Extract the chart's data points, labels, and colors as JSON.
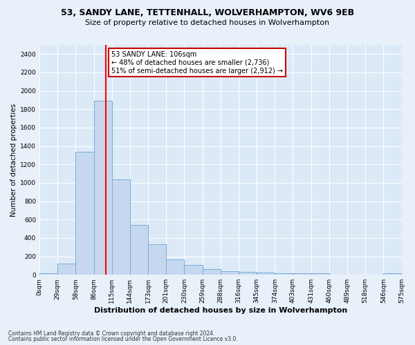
{
  "title": "53, SANDY LANE, TETTENHALL, WOLVERHAMPTON, WV6 9EB",
  "subtitle": "Size of property relative to detached houses in Wolverhampton",
  "xlabel": "Distribution of detached houses by size in Wolverhampton",
  "ylabel": "Number of detached properties",
  "bar_color": "#c5d8f0",
  "bar_edge_color": "#7aaed6",
  "background_color": "#dce9f7",
  "grid_color": "#ffffff",
  "fig_bg": "#e8f0fa",
  "red_line_x": 106,
  "bin_width": 29,
  "num_bins": 20,
  "bar_values": [
    20,
    125,
    1340,
    1890,
    1040,
    545,
    335,
    165,
    110,
    62,
    38,
    30,
    25,
    18,
    15,
    20,
    5,
    5,
    5,
    20
  ],
  "bin_labels": [
    "0sqm",
    "29sqm",
    "58sqm",
    "86sqm",
    "115sqm",
    "144sqm",
    "173sqm",
    "201sqm",
    "230sqm",
    "259sqm",
    "288sqm",
    "316sqm",
    "345sqm",
    "374sqm",
    "403sqm",
    "431sqm",
    "460sqm",
    "489sqm",
    "518sqm",
    "546sqm",
    "575sqm"
  ],
  "annotation_title": "53 SANDY LANE: 106sqm",
  "annotation_line1": "← 48% of detached houses are smaller (2,736)",
  "annotation_line2": "51% of semi-detached houses are larger (2,912) →",
  "annotation_box_color": "#ffffff",
  "annotation_box_edge": "#cc0000",
  "footer_line1": "Contains HM Land Registry data © Crown copyright and database right 2024.",
  "footer_line2": "Contains public sector information licensed under the Open Government Licence v3.0.",
  "ylim": [
    0,
    2500
  ],
  "yticks": [
    0,
    200,
    400,
    600,
    800,
    1000,
    1200,
    1400,
    1600,
    1800,
    2000,
    2200,
    2400
  ],
  "title_fontsize": 9,
  "subtitle_fontsize": 8,
  "ylabel_fontsize": 7.5,
  "xlabel_fontsize": 8,
  "tick_fontsize": 6.5,
  "annotation_fontsize": 7,
  "footer_fontsize": 5.5
}
